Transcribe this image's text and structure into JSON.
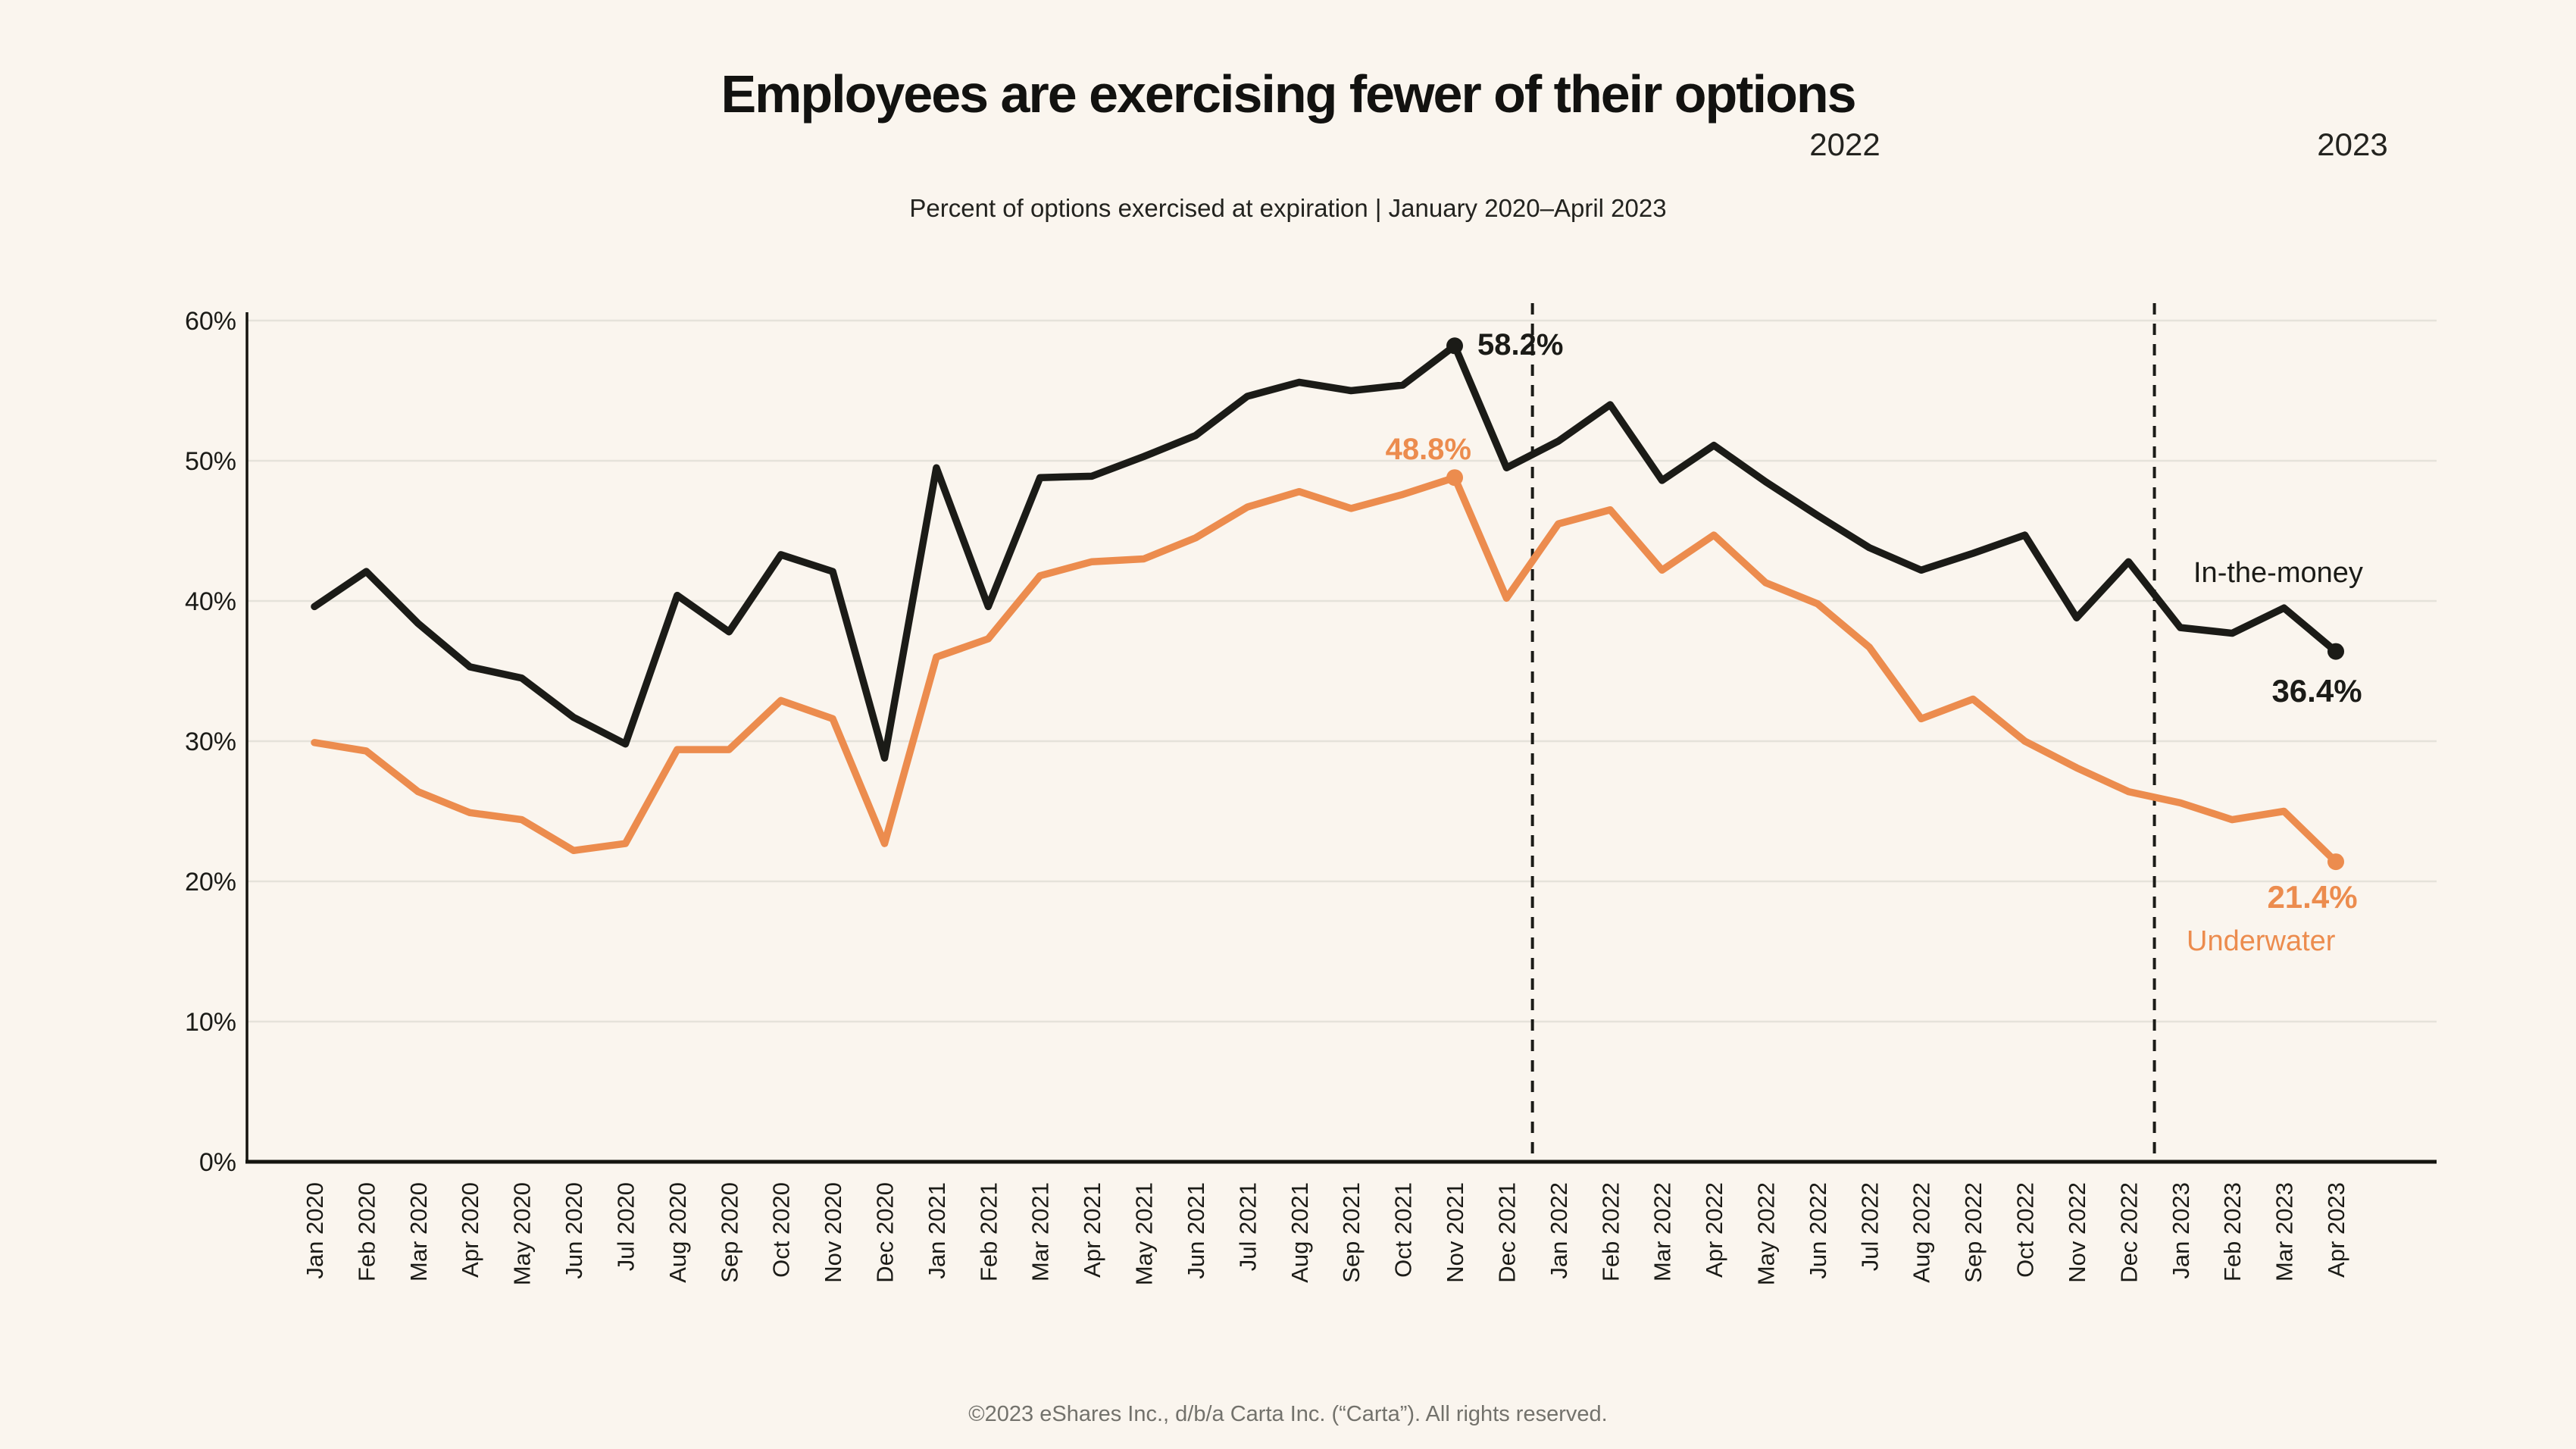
{
  "header": {
    "title": "Employees are exercising fewer of their options",
    "subtitle": "Percent of options exercised at expiration |  January 2020–April 2023"
  },
  "footer": {
    "copyright": "©2023 eShares Inc., d/b/a Carta Inc. (“Carta”). All rights reserved."
  },
  "colors": {
    "background": "#FAF5EE",
    "black_series": "#1B1B17",
    "orange_series": "#EC8C4E",
    "gridline": "#E5E2DA",
    "axis": "#14140F",
    "footer_text": "#73726C"
  },
  "chart_data": {
    "type": "line",
    "title": "Employees are exercising fewer of their options",
    "subtitle": "Percent of options exercised at expiration |  January 2020–April 2023",
    "xlabel": "",
    "ylabel": "",
    "ylim": [
      0,
      62
    ],
    "grid": "horizontal",
    "y_ticks": [
      {
        "value": 0,
        "label": "0%"
      },
      {
        "value": 10,
        "label": "10%"
      },
      {
        "value": 20,
        "label": "20%"
      },
      {
        "value": 30,
        "label": "30%"
      },
      {
        "value": 40,
        "label": "40%"
      },
      {
        "value": 50,
        "label": "50%"
      },
      {
        "value": 60,
        "label": "60%"
      }
    ],
    "categories": [
      "Jan 2020",
      "Feb 2020",
      "Mar 2020",
      "Apr 2020",
      "May 2020",
      "Jun 2020",
      "Jul 2020",
      "Aug 2020",
      "Sep 2020",
      "Oct 2020",
      "Nov 2020",
      "Dec 2020",
      "Jan 2021",
      "Feb 2021",
      "Mar 2021",
      "Apr 2021",
      "May 2021",
      "Jun 2021",
      "Jul 2021",
      "Aug 2021",
      "Sep 2021",
      "Oct 2021",
      "Nov 2021",
      "Dec 2021",
      "Jan 2022",
      "Feb 2022",
      "Mar 2022",
      "Apr 2022",
      "May 2022",
      "Jun 2022",
      "Jul 2022",
      "Aug 2022",
      "Sep 2022",
      "Oct 2022",
      "Nov 2022",
      "Dec 2022",
      "Jan 2023",
      "Feb 2023",
      "Mar 2023",
      "Apr 2023"
    ],
    "series": [
      {
        "name": "In-the-money",
        "color": "#1B1B17",
        "values": [
          39.6,
          42.1,
          38.4,
          35.3,
          34.5,
          31.7,
          29.8,
          40.4,
          37.8,
          43.3,
          42.1,
          28.8,
          49.5,
          39.6,
          48.8,
          48.9,
          50.3,
          51.8,
          54.6,
          55.6,
          55.0,
          55.4,
          58.2,
          49.5,
          51.4,
          54.0,
          48.6,
          51.1,
          48.5,
          46.1,
          43.8,
          42.2,
          43.4,
          44.7,
          38.8,
          42.8,
          38.1,
          37.7,
          39.5,
          36.4
        ]
      },
      {
        "name": "Underwater",
        "color": "#EC8C4E",
        "values": [
          29.9,
          29.3,
          26.4,
          24.9,
          24.4,
          22.2,
          22.7,
          29.4,
          29.4,
          32.9,
          31.6,
          22.7,
          36.0,
          37.3,
          41.8,
          42.8,
          43.0,
          44.5,
          46.7,
          47.8,
          46.6,
          47.6,
          48.8,
          40.2,
          45.5,
          46.5,
          42.2,
          44.7,
          41.3,
          39.8,
          36.7,
          31.6,
          33.0,
          30.0,
          28.1,
          26.4,
          25.6,
          24.4,
          25.0,
          21.4
        ]
      }
    ],
    "marked_points": [
      {
        "series": 0,
        "category": "Nov 2021",
        "label": "58.2%"
      },
      {
        "series": 1,
        "category": "Nov 2021",
        "label": "48.8%"
      },
      {
        "series": 0,
        "category": "Apr 2023",
        "label": "36.4%"
      },
      {
        "series": 1,
        "category": "Apr 2023",
        "label": "21.4%"
      }
    ],
    "series_end_labels": [
      {
        "series": 0,
        "label": "In-the-money"
      },
      {
        "series": 1,
        "label": "Underwater"
      }
    ],
    "year_dividers": [
      {
        "label": "2022",
        "after_category": "Dec 2021"
      },
      {
        "label": "2023",
        "after_category": "Dec 2022"
      }
    ],
    "legend_position": "inline-right"
  }
}
